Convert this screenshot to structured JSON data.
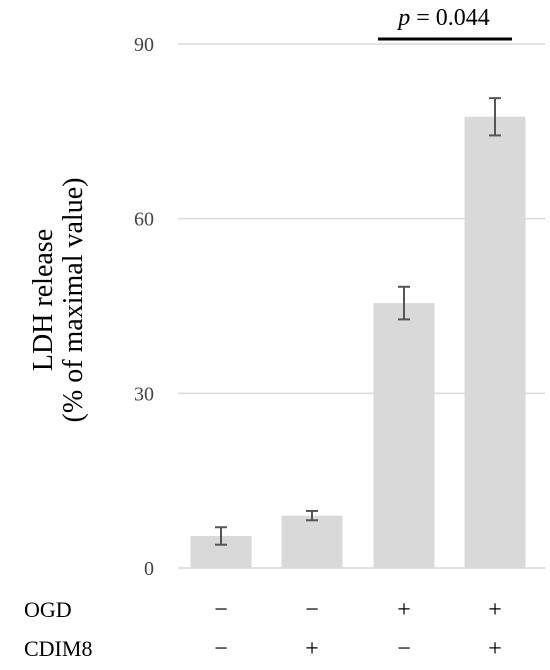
{
  "chart_data": {
    "type": "bar",
    "categories": [
      "1",
      "2",
      "3",
      "4"
    ],
    "values": [
      5.5,
      9,
      45.5,
      77.5
    ],
    "errors": [
      1.5,
      0.8,
      2.8,
      3.2
    ],
    "ylim": [
      0,
      90
    ],
    "yticks": [
      "0",
      "30",
      "60",
      "90"
    ],
    "ylabel_line1": "LDH  release",
    "ylabel_line2": "(% of maximal value)",
    "grid": true,
    "colors": {
      "bar": "#d9d9d9",
      "grid": "#d9d9d9",
      "error": "#555555",
      "bracket": "#000000"
    },
    "conditions": [
      {
        "label": "OGD",
        "symbols": [
          "−",
          "−",
          "+",
          "+"
        ]
      },
      {
        "label": "CDIM8",
        "symbols": [
          "−",
          "+",
          "−",
          "+"
        ]
      }
    ],
    "annotation": {
      "p_label": "p",
      "text": " = 0.044",
      "between": [
        3,
        4
      ]
    }
  }
}
